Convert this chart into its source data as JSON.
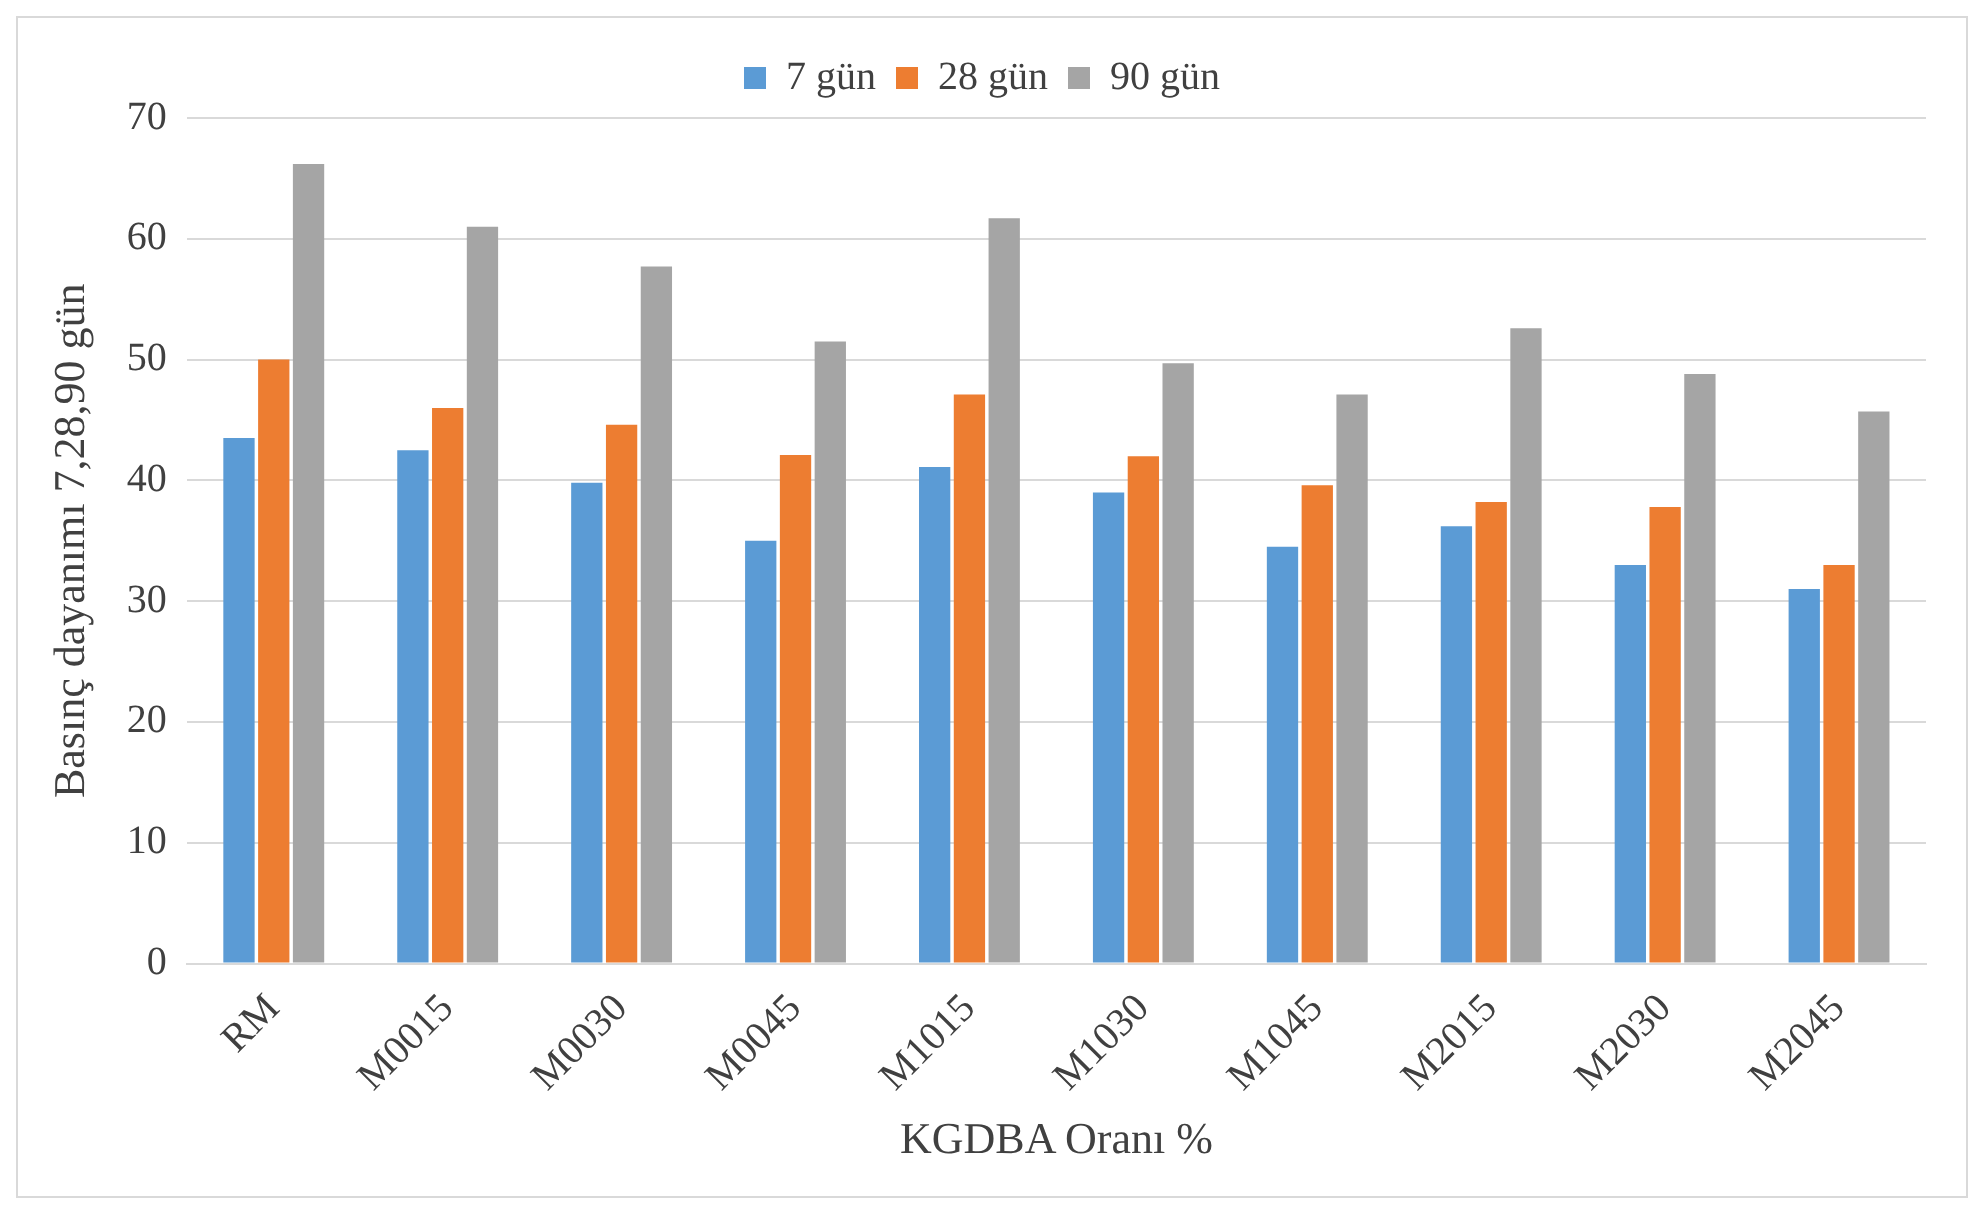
{
  "chart_data": {
    "type": "bar",
    "xlabel": "KGDBA Oranı %",
    "ylabel": "Basınç dayanımı 7,28,90 gün",
    "categories": [
      "RM",
      "M0015",
      "M0030",
      "M0045",
      "M1015",
      "M1030",
      "M1045",
      "M2015",
      "M2030",
      "M2045"
    ],
    "series": [
      {
        "name": "7 gün",
        "color": "#5b9bd5",
        "values": [
          43.5,
          42.5,
          39.8,
          35,
          41.1,
          39,
          34.5,
          36.2,
          33,
          31
        ]
      },
      {
        "name": "28 gün",
        "color": "#ed7d31",
        "values": [
          50,
          46,
          44.6,
          42.1,
          47.1,
          42,
          39.6,
          38.2,
          37.8,
          33
        ]
      },
      {
        "name": "90 gün",
        "color": "#a5a5a5",
        "values": [
          66.2,
          61,
          57.7,
          51.5,
          61.7,
          49.7,
          47.1,
          52.6,
          48.8,
          45.7
        ]
      }
    ],
    "ylim": [
      0,
      70
    ],
    "yticks": [
      0,
      10,
      20,
      30,
      40,
      50,
      60,
      70
    ],
    "grid": "y",
    "legend": "top"
  }
}
